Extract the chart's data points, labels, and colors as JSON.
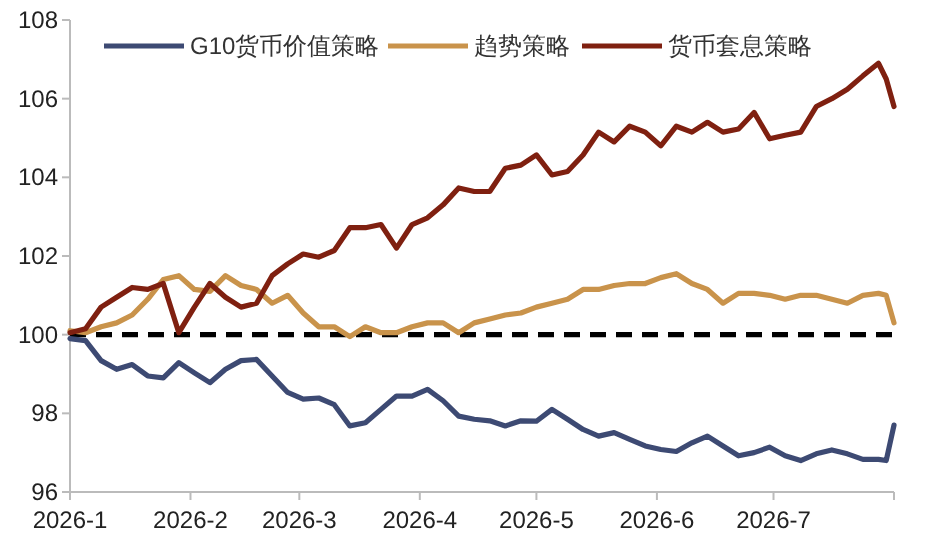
{
  "chart_data": {
    "type": "line",
    "x": [
      "2026-01-01",
      "2026-01-05",
      "2026-01-09",
      "2026-01-13",
      "2026-01-17",
      "2026-01-21",
      "2026-01-25",
      "2026-01-29",
      "2026-02-02",
      "2026-02-06",
      "2026-02-10",
      "2026-02-14",
      "2026-02-18",
      "2026-02-22",
      "2026-02-26",
      "2026-03-02",
      "2026-03-06",
      "2026-03-10",
      "2026-03-14",
      "2026-03-18",
      "2026-03-22",
      "2026-03-26",
      "2026-03-30",
      "2026-04-03",
      "2026-04-07",
      "2026-04-11",
      "2026-04-15",
      "2026-04-19",
      "2026-04-23",
      "2026-04-27",
      "2026-05-01",
      "2026-05-05",
      "2026-05-09",
      "2026-05-13",
      "2026-05-17",
      "2026-05-21",
      "2026-05-25",
      "2026-05-29",
      "2026-06-02",
      "2026-06-06",
      "2026-06-10",
      "2026-06-14",
      "2026-06-18",
      "2026-06-22",
      "2026-06-26",
      "2026-06-30",
      "2026-07-04",
      "2026-07-08",
      "2026-07-12",
      "2026-07-16",
      "2026-07-20",
      "2026-07-24",
      "2026-07-28",
      "2026-07-30",
      "2026-08-01"
    ],
    "series": [
      {
        "name": "G10货币价值策略",
        "color": "#3d4a73",
        "values": [
          99.9,
          99.85,
          99.34,
          99.12,
          99.24,
          98.95,
          98.9,
          99.29,
          99.03,
          98.78,
          99.12,
          99.34,
          99.37,
          98.95,
          98.53,
          98.36,
          98.39,
          98.22,
          97.68,
          97.76,
          98.1,
          98.44,
          98.44,
          98.61,
          98.32,
          97.93,
          97.85,
          97.81,
          97.68,
          97.81,
          97.8,
          98.1,
          97.85,
          97.59,
          97.42,
          97.51,
          97.34,
          97.17,
          97.08,
          97.03,
          97.25,
          97.42,
          97.17,
          96.92,
          97.0,
          97.14,
          96.92,
          96.8,
          96.97,
          97.07,
          96.97,
          96.83,
          96.83,
          96.8,
          97.7
        ]
      },
      {
        "name": "趋势策略",
        "color": "#c9934b",
        "values": [
          100.1,
          100.05,
          100.2,
          100.3,
          100.5,
          100.9,
          101.4,
          101.5,
          101.15,
          101.1,
          101.5,
          101.25,
          101.15,
          100.8,
          101.0,
          100.55,
          100.2,
          100.2,
          99.95,
          100.2,
          100.05,
          100.05,
          100.2,
          100.3,
          100.3,
          100.05,
          100.3,
          100.4,
          100.5,
          100.55,
          100.7,
          100.8,
          100.9,
          101.15,
          101.15,
          101.25,
          101.3,
          101.3,
          101.45,
          101.55,
          101.3,
          101.15,
          100.8,
          101.05,
          101.05,
          101.0,
          100.9,
          101.0,
          101.0,
          100.9,
          100.8,
          101.0,
          101.05,
          101.0,
          100.3
        ]
      },
      {
        "name": "货币套息策略",
        "color": "#7f2010",
        "values": [
          100.05,
          100.15,
          100.7,
          100.95,
          101.2,
          101.15,
          101.3,
          100.05,
          100.7,
          101.3,
          100.95,
          100.7,
          100.8,
          101.5,
          101.8,
          102.05,
          101.97,
          102.14,
          102.72,
          102.72,
          102.8,
          102.2,
          102.8,
          102.97,
          103.3,
          103.73,
          103.64,
          103.64,
          104.23,
          104.31,
          104.57,
          104.06,
          104.15,
          104.57,
          105.15,
          104.9,
          105.3,
          105.15,
          104.8,
          105.3,
          105.15,
          105.4,
          105.15,
          105.23,
          105.65,
          104.98,
          105.07,
          105.15,
          105.8,
          106.0,
          106.24,
          106.58,
          106.9,
          106.5,
          105.8
        ]
      }
    ],
    "xlim": [
      "2026-01-01",
      "2026-08-01"
    ],
    "xticks": [
      {
        "value": "2026-01-01",
        "label": "2026-1"
      },
      {
        "value": "2026-02-01",
        "label": "2026-2"
      },
      {
        "value": "2026-03-01",
        "label": "2026-3"
      },
      {
        "value": "2026-04-01",
        "label": "2026-4"
      },
      {
        "value": "2026-05-01",
        "label": "2026-5"
      },
      {
        "value": "2026-06-01",
        "label": "2026-6"
      },
      {
        "value": "2026-07-01",
        "label": "2026-7"
      },
      {
        "value": "2026-08-01",
        "label": null
      }
    ],
    "ylim": [
      96,
      108
    ],
    "yticks": [
      96,
      98,
      100,
      102,
      104,
      106,
      108
    ],
    "ref_lines": [
      {
        "axis": "y",
        "value": 100,
        "color": "#000000",
        "line_style": "dashed"
      }
    ],
    "legend": "top",
    "grid": false,
    "marker": "none",
    "line_style": "solid"
  }
}
